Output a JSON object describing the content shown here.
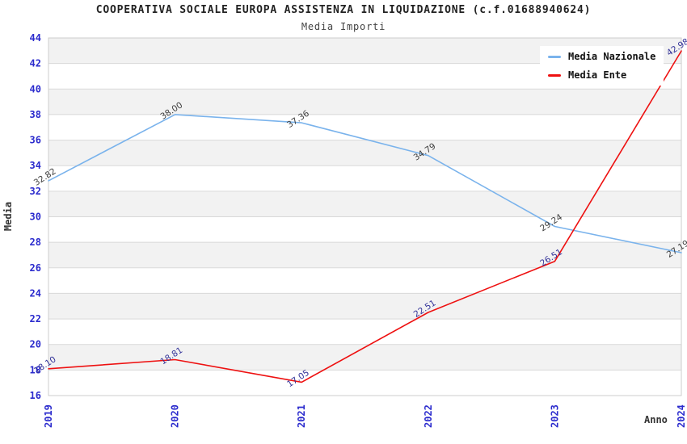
{
  "header": {
    "title": "COOPERATIVA SOCIALE EUROPA ASSISTENZA IN LIQUIDAZIONE (c.f.01688940624)",
    "subtitle": "Media Importi"
  },
  "legend": {
    "items": [
      {
        "label": "Media Nazionale",
        "color": "#7ab3ec"
      },
      {
        "label": "Media Ente",
        "color": "#ee1111"
      }
    ]
  },
  "chart_data": {
    "type": "line",
    "title": "COOPERATIVA SOCIALE EUROPA ASSISTENZA IN LIQUIDAZIONE (c.f.01688940624)",
    "subtitle": "Media Importi",
    "xlabel": "Anno",
    "ylabel": "Media",
    "x": [
      "2019",
      "2020",
      "2021",
      "2022",
      "2023",
      "2024"
    ],
    "series": [
      {
        "name": "Media Nazionale",
        "color": "#7ab3ec",
        "label_color": "#404040",
        "values": [
          32.82,
          38.0,
          37.36,
          34.79,
          29.24,
          27.19
        ]
      },
      {
        "name": "Media Ente",
        "color": "#ee1111",
        "label_color": "#333399",
        "values": [
          18.1,
          18.81,
          17.05,
          22.51,
          26.51,
          42.98
        ]
      }
    ],
    "ylim": [
      16,
      44
    ],
    "ytick_step": 2,
    "grid": true,
    "band_color": "#f2f2f2",
    "gridline_color": "#d9d9d9",
    "plot_border_color": "#cccccc",
    "axis_tick_color": "#2b2bcd",
    "legend_position": "top-right"
  }
}
